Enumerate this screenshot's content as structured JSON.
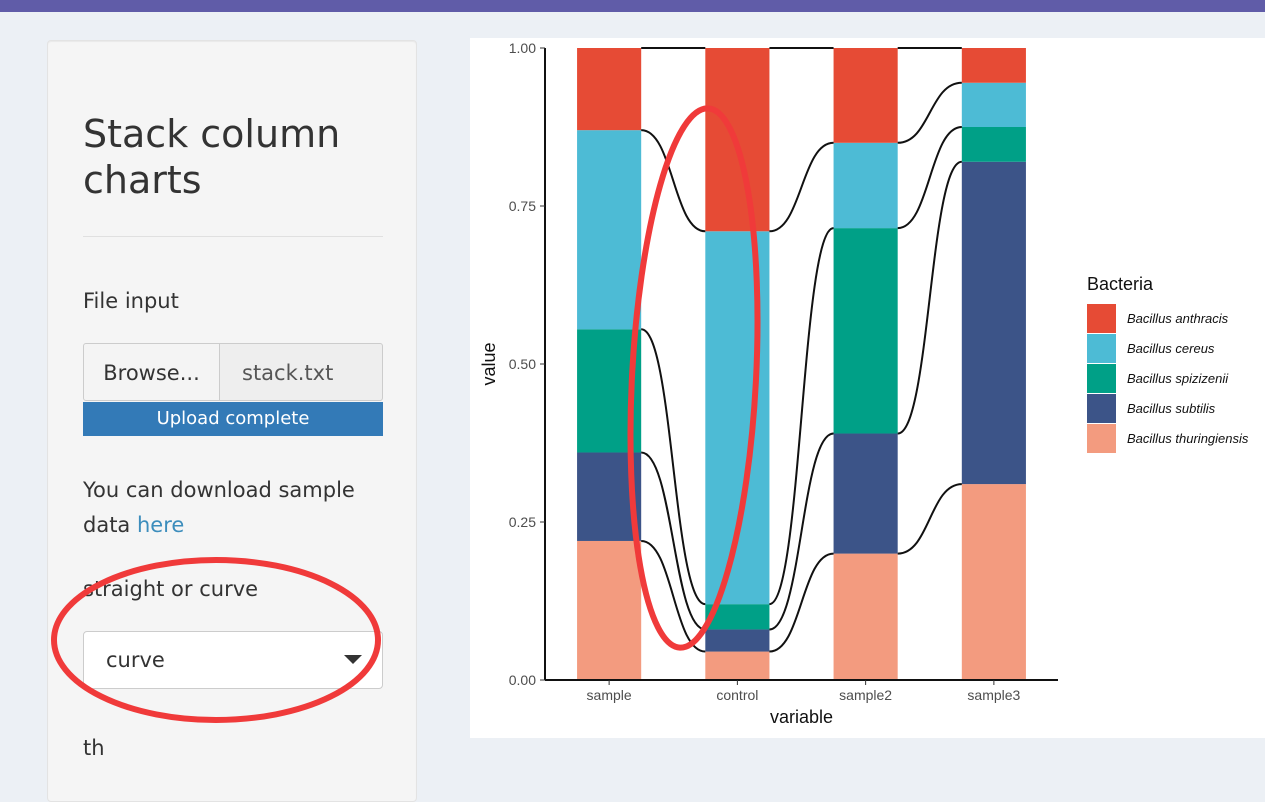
{
  "sidebar": {
    "title": "Stack column charts",
    "file_input_label": "File input",
    "browse_label": "Browse...",
    "file_name": "stack.txt",
    "progress_text": "Upload complete",
    "download_text": "You can download sample data",
    "download_link": "here",
    "select_label": "straight or curve",
    "select_value": "curve",
    "cut_label": "th"
  },
  "colors": {
    "topbar": "#605ca8",
    "annotation": "#f03a3a"
  },
  "chart_data": {
    "type": "bar",
    "stacked": true,
    "connector_style": "curve",
    "categories": [
      "sample",
      "control",
      "sample2",
      "sample3"
    ],
    "xlabel": "variable",
    "ylabel": "value",
    "ylim": [
      0,
      1
    ],
    "yticks": [
      "0.00",
      "0.25",
      "0.50",
      "0.75",
      "1.00"
    ],
    "legend_title": "Bacteria",
    "legend_position": "right",
    "series": [
      {
        "name": "Bacillus thuringiensis",
        "color": "#f39b7f",
        "values": [
          0.22,
          0.045,
          0.2,
          0.31
        ]
      },
      {
        "name": "Bacillus subtilis",
        "color": "#3c5488",
        "values": [
          0.14,
          0.035,
          0.19,
          0.51
        ]
      },
      {
        "name": "Bacillus spizizenii",
        "color": "#00a087",
        "values": [
          0.195,
          0.04,
          0.325,
          0.055
        ]
      },
      {
        "name": "Bacillus cereus",
        "color": "#4dbbd5",
        "values": [
          0.315,
          0.59,
          0.135,
          0.07
        ]
      },
      {
        "name": "Bacillus anthracis",
        "color": "#e64b35",
        "values": [
          0.13,
          0.29,
          0.15,
          0.055
        ]
      }
    ]
  }
}
